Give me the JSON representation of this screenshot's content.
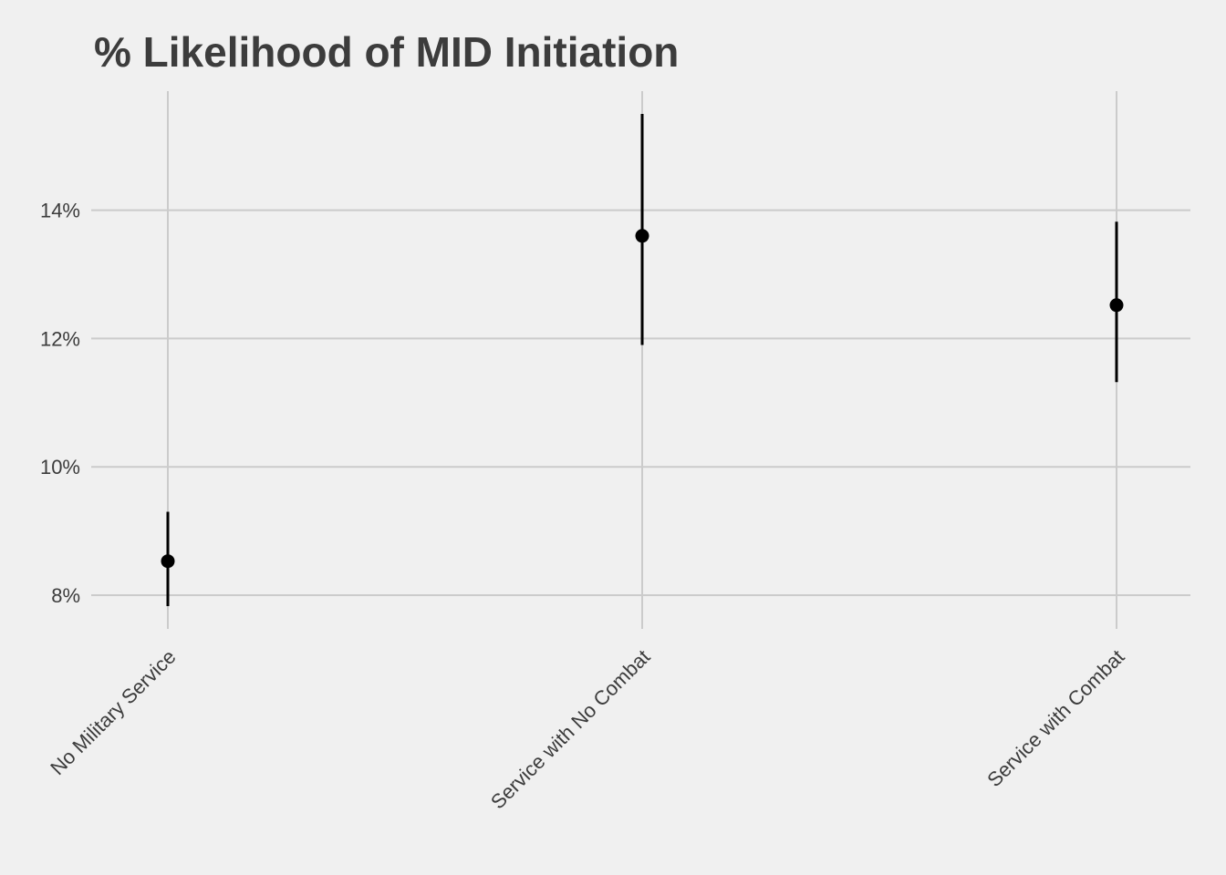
{
  "chart_data": {
    "type": "scatter",
    "subtype": "point-range",
    "title": "% Likelihood of MID Initiation",
    "xlabel": "",
    "ylabel": "",
    "categories": [
      "No Military Service",
      "Service with No Combat",
      "Service with Combat"
    ],
    "series": [
      {
        "values": [
          8.53,
          13.6,
          12.52
        ],
        "lower": [
          7.83,
          11.9,
          11.32
        ],
        "upper": [
          9.3,
          15.5,
          13.82
        ],
        "color": "#000000"
      }
    ],
    "y_ticks": [
      8,
      10,
      12,
      14
    ],
    "y_tick_labels": [
      "8%",
      "10%",
      "12%",
      "14%"
    ],
    "ylim": [
      7.6,
      15.9
    ],
    "grid": true,
    "legend": "none",
    "colors": {
      "background": "#f0f0f0",
      "grid": "#cbcbcb",
      "text": "#3c3c3c",
      "marks": "#000000"
    }
  }
}
